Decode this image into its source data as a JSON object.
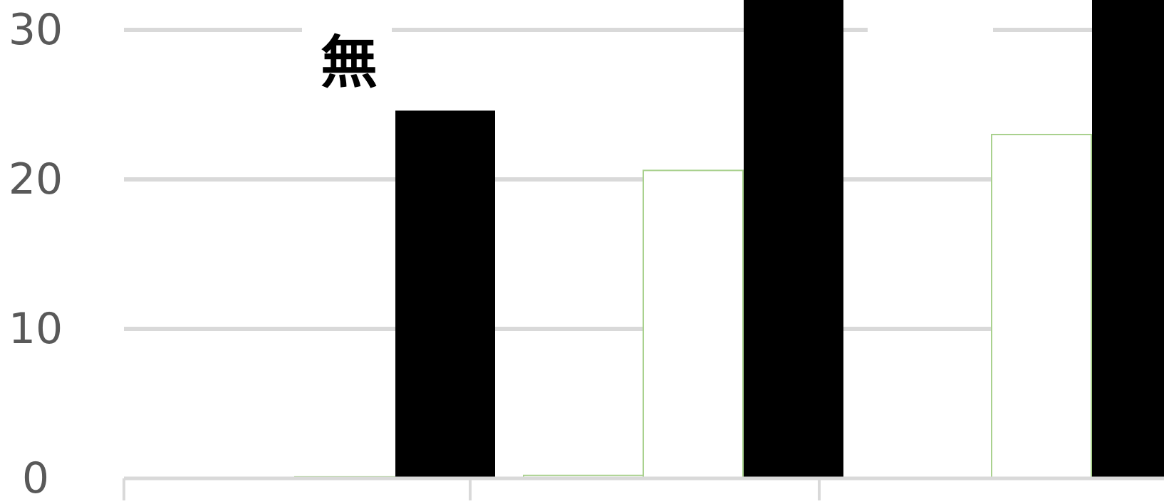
{
  "chart_data": {
    "type": "bar",
    "categories": [
      "",
      "",
      ""
    ],
    "series": [
      {
        "values": [
          0,
          0.2,
          0
        ]
      },
      {
        "values": [
          0.1,
          20.6,
          23
        ]
      },
      {
        "values": [
          24.6,
          32,
          32
        ]
      }
    ],
    "yticks": [
      "0",
      "10",
      "20",
      "30"
    ],
    "ylim": [
      0,
      30
    ],
    "grid": true,
    "annotations": [
      {
        "text": "無",
        "category_index": 0
      }
    ],
    "title": "",
    "xlabel": "",
    "ylabel": "",
    "colors": {
      "bar": "#000000",
      "thin_series": "#a9d18e",
      "grid": "#d9d9d9",
      "axis_text": "#595959"
    }
  }
}
